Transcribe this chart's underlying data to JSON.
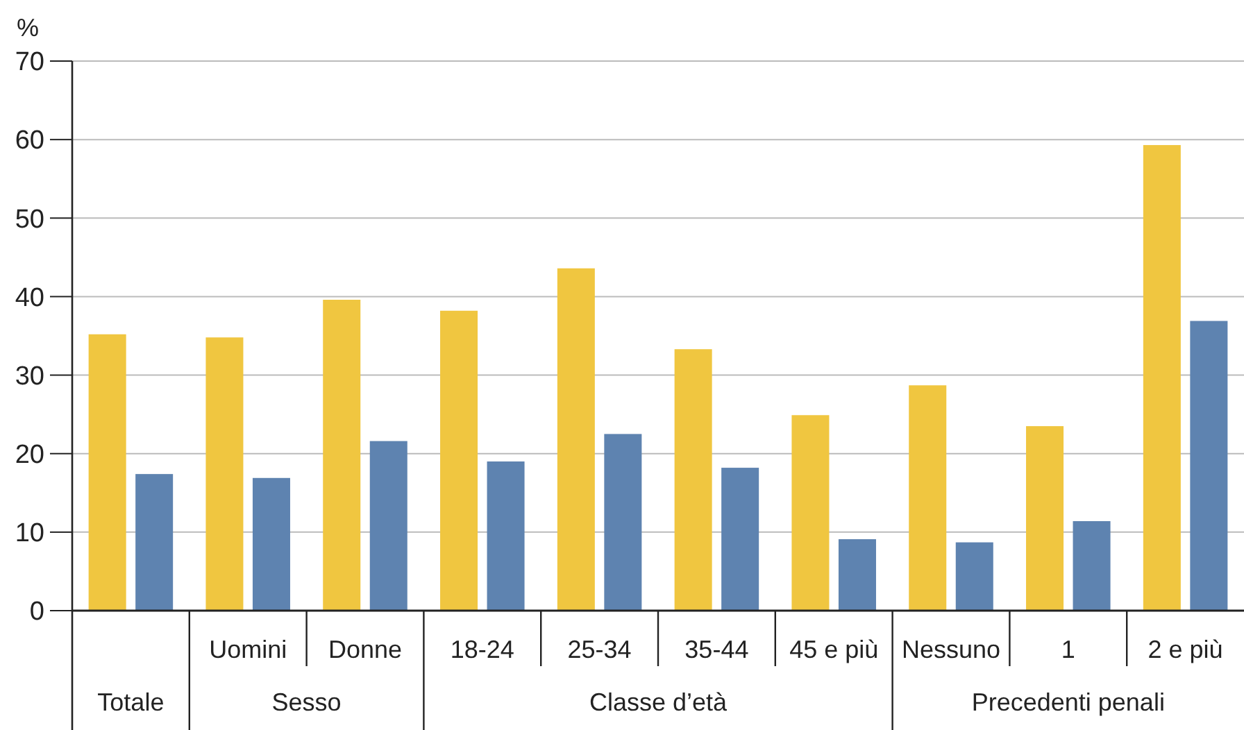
{
  "chart_data": {
    "type": "bar",
    "ylabel": "%",
    "categories": [
      null,
      "Uomini",
      "Donne",
      "18-24",
      "25-34",
      "35-44",
      "45 e più",
      "Nessuno",
      "1",
      "2 e più"
    ],
    "series": [
      {
        "color": "#f0c640",
        "values": [
          35.2,
          34.8,
          39.6,
          38.2,
          43.6,
          33.3,
          24.9,
          28.7,
          23.5,
          59.3
        ]
      },
      {
        "color": "#5e83b0",
        "values": [
          17.4,
          16.9,
          21.6,
          19.0,
          22.5,
          18.2,
          9.1,
          8.7,
          11.4,
          36.9
        ]
      }
    ],
    "ylim": [
      0,
      70
    ],
    "yticks": [
      0,
      10,
      20,
      30,
      40,
      50,
      60,
      70
    ],
    "grid": "y",
    "annotations": [
      "Totale",
      "Sesso",
      "Classe d’età",
      "Precedenti penali"
    ]
  }
}
